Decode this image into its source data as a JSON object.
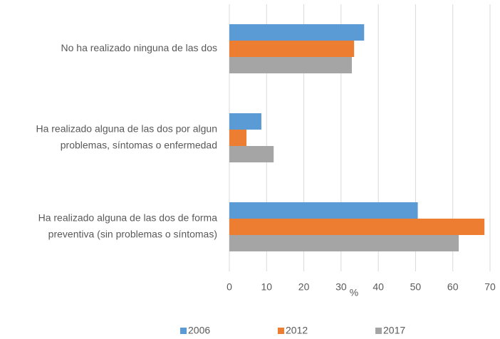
{
  "chart_data": {
    "type": "barh",
    "categories": [
      [
        "No ha realizado ninguna de las dos"
      ],
      [
        "Ha realizado alguna de las dos por algun",
        "problemas, síntomas o enfermedad"
      ],
      [
        "Ha realizado alguna de las dos de forma",
        "preventiva (sin problemas o síntomas)"
      ]
    ],
    "series": [
      {
        "name": "2006",
        "color": "#5b9bd5",
        "values": [
          36.2,
          8.6,
          50.6
        ]
      },
      {
        "name": "2012",
        "color": "#ed7d31",
        "values": [
          33.5,
          4.6,
          68.5
        ]
      },
      {
        "name": "2017",
        "color": "#a5a5a5",
        "values": [
          32.9,
          11.9,
          61.6
        ]
      }
    ],
    "x_label": "%",
    "xlim": [
      0,
      70
    ],
    "xticks": [
      0,
      10,
      20,
      30,
      40,
      50,
      60,
      70
    ],
    "grid": true,
    "legend": "bottom"
  }
}
